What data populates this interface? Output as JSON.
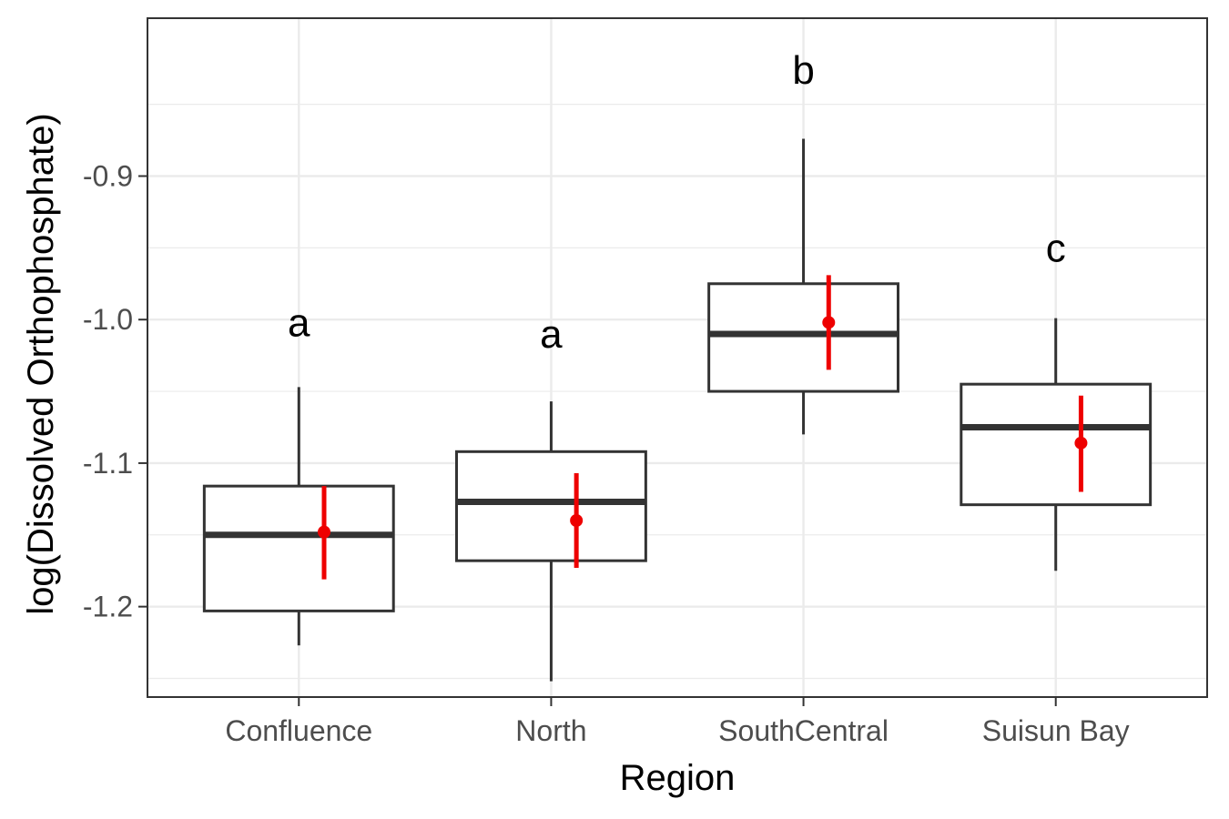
{
  "chart_data": {
    "type": "boxplot",
    "xlabel": "Region",
    "ylabel": "log(Dissolved Orthophosphate)",
    "ylim": [
      -1.263,
      -0.79
    ],
    "y_ticks": [
      -0.9,
      -1.0,
      -1.1,
      -1.2
    ],
    "y_tick_labels": [
      "-0.9",
      "-1.0",
      "-1.1",
      "-1.2"
    ],
    "grid": true,
    "colors": {
      "box": "#333333",
      "mean": "#ee0000",
      "grid": "#ebebeb",
      "panel_border": "#333333"
    },
    "categories": [
      "Confluence",
      "North",
      "SouthCentral",
      "Suisun Bay"
    ],
    "boxes": [
      {
        "category": "Confluence",
        "whisker_low": -1.227,
        "q1": -1.203,
        "median": -1.15,
        "q3": -1.116,
        "whisker_high": -1.047
      },
      {
        "category": "North",
        "whisker_low": -1.252,
        "q1": -1.168,
        "median": -1.127,
        "q3": -1.092,
        "whisker_high": -1.057
      },
      {
        "category": "SouthCentral",
        "whisker_low": -1.08,
        "q1": -1.05,
        "median": -1.01,
        "q3": -0.975,
        "whisker_high": -0.874
      },
      {
        "category": "Suisun Bay",
        "whisker_low": -1.175,
        "q1": -1.129,
        "median": -1.075,
        "q3": -1.045,
        "whisker_high": -0.999
      }
    ],
    "means": [
      {
        "category": "Confluence",
        "mean": -1.148,
        "ci_low": -1.181,
        "ci_high": -1.116
      },
      {
        "category": "North",
        "mean": -1.14,
        "ci_low": -1.173,
        "ci_high": -1.107
      },
      {
        "category": "SouthCentral",
        "mean": -1.002,
        "ci_low": -1.035,
        "ci_high": -0.969
      },
      {
        "category": "Suisun Bay",
        "mean": -1.086,
        "ci_low": -1.12,
        "ci_high": -1.053
      }
    ],
    "group_letters": [
      {
        "category": "Confluence",
        "letter": "a",
        "y": -1.002
      },
      {
        "category": "North",
        "letter": "a",
        "y": -1.01
      },
      {
        "category": "SouthCentral",
        "letter": "b",
        "y": -0.826
      },
      {
        "category": "Suisun Bay",
        "letter": "c",
        "y": -0.95
      }
    ]
  }
}
